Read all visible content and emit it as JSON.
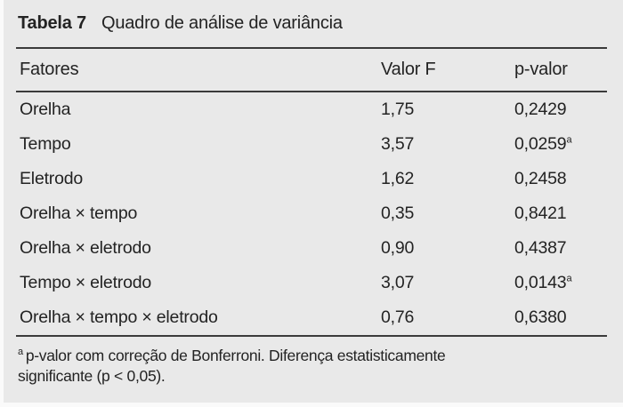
{
  "table": {
    "label": "Tabela 7",
    "title": "Quadro de análise de variância",
    "columns": [
      "Fatores",
      "Valor F",
      "p-valor"
    ],
    "rows": [
      {
        "factor": "Orelha",
        "f": "1,75",
        "p": "0,2429",
        "sup": ""
      },
      {
        "factor": "Tempo",
        "f": "3,57",
        "p": "0,0259",
        "sup": "a"
      },
      {
        "factor": "Eletrodo",
        "f": "1,62",
        "p": "0,2458",
        "sup": ""
      },
      {
        "factor": "Orelha × tempo",
        "f": "0,35",
        "p": "0,8421",
        "sup": ""
      },
      {
        "factor": "Orelha × eletrodo",
        "f": "0,90",
        "p": "0,4387",
        "sup": ""
      },
      {
        "factor": "Tempo × eletrodo",
        "f": "3,07",
        "p": "0,0143",
        "sup": "a"
      },
      {
        "factor": "Orelha × tempo × eletrodo",
        "f": "0,76",
        "p": "0,6380",
        "sup": ""
      }
    ],
    "footnote": {
      "marker": "a",
      "line1": "p-valor com correção de Bonferroni. Diferença estatisticamente",
      "line2": "significante (p < 0,05)."
    }
  },
  "colors": {
    "background": "#e9e9e9",
    "text": "#232323",
    "rule": "#3b3b3b"
  }
}
